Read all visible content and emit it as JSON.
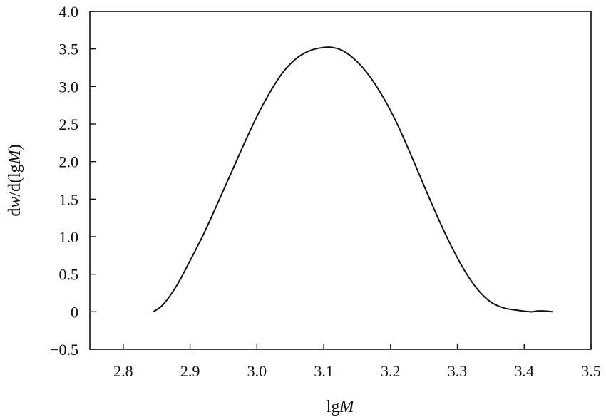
{
  "chart_data": {
    "type": "line",
    "title": "",
    "xlabel_prefix": "lg",
    "xlabel_var": "M",
    "ylabel_d1": "d",
    "ylabel_w": "w",
    "ylabel_mid": "/d(lg",
    "ylabel_M": "M",
    "ylabel_close": ")",
    "xlim": [
      2.75,
      3.5
    ],
    "ylim": [
      -0.5,
      4.0
    ],
    "xticks": [
      2.8,
      2.9,
      3.0,
      3.1,
      3.2,
      3.3,
      3.4,
      3.5
    ],
    "xtick_labels": [
      "2.8",
      "2.9",
      "3.0",
      "3.1",
      "3.2",
      "3.3",
      "3.4",
      "3.5"
    ],
    "yticks": [
      -0.5,
      0,
      0.5,
      1.0,
      1.5,
      2.0,
      2.5,
      3.0,
      3.5,
      4.0
    ],
    "ytick_labels": [
      "−0.5",
      "0",
      "0.5",
      "1.0",
      "1.5",
      "2.0",
      "2.5",
      "3.0",
      "3.5",
      "4.0"
    ],
    "grid": false,
    "series": [
      {
        "x": [
          2.845,
          2.86,
          2.88,
          2.9,
          2.92,
          2.94,
          2.96,
          2.98,
          3.0,
          3.02,
          3.04,
          3.06,
          3.08,
          3.1,
          3.113,
          3.13,
          3.15,
          3.17,
          3.19,
          3.21,
          3.23,
          3.25,
          3.27,
          3.29,
          3.31,
          3.33,
          3.35,
          3.37,
          3.39,
          3.41,
          3.42,
          3.43,
          3.443
        ],
        "y": [
          0.0,
          0.1,
          0.35,
          0.68,
          1.03,
          1.42,
          1.82,
          2.22,
          2.6,
          2.93,
          3.2,
          3.38,
          3.48,
          3.52,
          3.52,
          3.47,
          3.33,
          3.12,
          2.84,
          2.5,
          2.1,
          1.68,
          1.27,
          0.89,
          0.56,
          0.3,
          0.13,
          0.05,
          0.02,
          0.0,
          0.01,
          0.01,
          0.0
        ]
      }
    ]
  }
}
